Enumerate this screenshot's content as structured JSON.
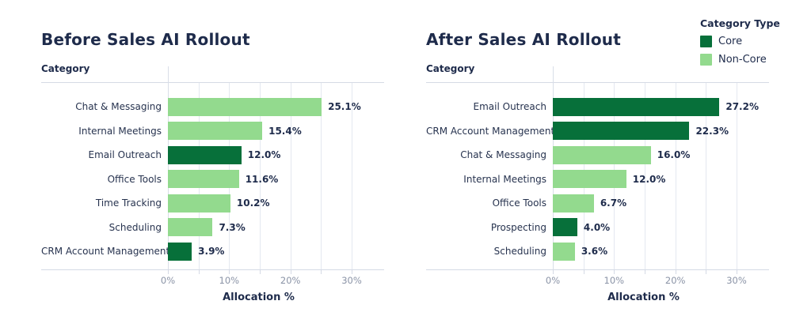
{
  "colors": {
    "core": "#07703a",
    "non_core": "#93da8e",
    "title_text": "#1e2b4b",
    "tick_text": "#8a93a6",
    "gridline": "#e4e8f0",
    "axis_line": "#d5dae5"
  },
  "legend": {
    "title": "Category Type",
    "items": [
      {
        "label": "Core",
        "type": "core"
      },
      {
        "label": "Non-Core",
        "type": "non_core"
      }
    ],
    "position": "top-right"
  },
  "chart_data": [
    {
      "type": "bar",
      "orientation": "horizontal",
      "title": "Before Sales AI Rollout",
      "ylabel": "Category",
      "xlabel": "Allocation %",
      "xlim": [
        0,
        35.3
      ],
      "grid_step": 5,
      "grid_max": 30,
      "xticks": [
        {
          "value": 0,
          "label": "0%"
        },
        {
          "value": 10,
          "label": "10%"
        },
        {
          "value": 20,
          "label": "20%"
        },
        {
          "value": 30,
          "label": "30%"
        }
      ],
      "bars": [
        {
          "category": "Chat & Messaging",
          "value": 25.1,
          "label": "25.1%",
          "type": "non_core"
        },
        {
          "category": "Internal Meetings",
          "value": 15.4,
          "label": "15.4%",
          "type": "non_core"
        },
        {
          "category": "Email Outreach",
          "value": 12.0,
          "label": "12.0%",
          "type": "core"
        },
        {
          "category": "Office Tools",
          "value": 11.6,
          "label": "11.6%",
          "type": "non_core"
        },
        {
          "category": "Time Tracking",
          "value": 10.2,
          "label": "10.2%",
          "type": "non_core"
        },
        {
          "category": "Scheduling",
          "value": 7.3,
          "label": "7.3%",
          "type": "non_core"
        },
        {
          "category": "CRM Account Management",
          "value": 3.9,
          "label": "3.9%",
          "type": "core"
        }
      ]
    },
    {
      "type": "bar",
      "orientation": "horizontal",
      "title": "After Sales AI Rollout",
      "ylabel": "Category",
      "xlabel": "Allocation %",
      "xlim": [
        0,
        35.3
      ],
      "grid_step": 5,
      "grid_max": 30,
      "xticks": [
        {
          "value": 0,
          "label": "0%"
        },
        {
          "value": 10,
          "label": "10%"
        },
        {
          "value": 20,
          "label": "20%"
        },
        {
          "value": 30,
          "label": "30%"
        }
      ],
      "bars": [
        {
          "category": "Email Outreach",
          "value": 27.2,
          "label": "27.2%",
          "type": "core"
        },
        {
          "category": "CRM Account Management",
          "value": 22.3,
          "label": "22.3%",
          "type": "core"
        },
        {
          "category": "Chat & Messaging",
          "value": 16.0,
          "label": "16.0%",
          "type": "non_core"
        },
        {
          "category": "Internal Meetings",
          "value": 12.0,
          "label": "12.0%",
          "type": "non_core"
        },
        {
          "category": "Office Tools",
          "value": 6.7,
          "label": "6.7%",
          "type": "non_core"
        },
        {
          "category": "Prospecting",
          "value": 4.0,
          "label": "4.0%",
          "type": "core"
        },
        {
          "category": "Scheduling",
          "value": 3.6,
          "label": "3.6%",
          "type": "non_core"
        }
      ]
    }
  ]
}
